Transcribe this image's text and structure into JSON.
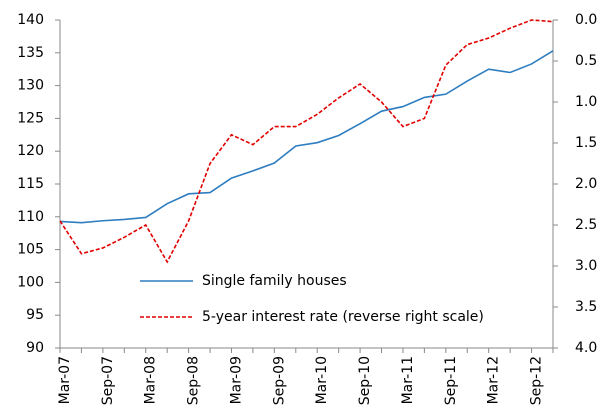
{
  "chart_data": {
    "type": "line",
    "categories": [
      "Mar-07",
      null,
      "Sep-07",
      null,
      "Mar-08",
      null,
      "Sep-08",
      null,
      "Mar-09",
      null,
      "Sep-09",
      null,
      "Mar-10",
      null,
      "Sep-10",
      null,
      "Mar-11",
      null,
      "Sep-11",
      null,
      "Mar-12",
      null,
      "Sep-12",
      null
    ],
    "series": [
      {
        "name": "Single family houses",
        "color": "#2e7dc0",
        "linestyle": "solid",
        "values": [
          109.3,
          109.1,
          109.4,
          109.6,
          109.9,
          112.0,
          113.5,
          113.7,
          115.9,
          117.0,
          118.2,
          120.8,
          121.3,
          122.4,
          124.2,
          126.1,
          126.8,
          128.2,
          128.7,
          130.7,
          132.5,
          132.0,
          133.3,
          135.3
        ]
      },
      {
        "name": "5-year interest rate (reverse right scale)",
        "color": "#e00000",
        "linestyle": "dashed",
        "axis": "y2",
        "values": [
          2.45,
          2.85,
          2.78,
          2.65,
          2.5,
          2.95,
          2.45,
          1.75,
          1.4,
          1.52,
          1.3,
          1.3,
          1.15,
          0.95,
          0.78,
          1.0,
          1.3,
          1.2,
          0.55,
          0.3,
          0.22,
          0.1,
          0.0,
          0.02
        ]
      }
    ],
    "ylim": [
      90,
      140
    ],
    "yticks": [
      90,
      95,
      100,
      105,
      110,
      115,
      120,
      125,
      130,
      135,
      140
    ],
    "y2lim": [
      4,
      0
    ],
    "y2ticks": [
      {
        "value": 0,
        "label": "0.0"
      },
      0.5,
      {
        "value": 1,
        "label": "1.0"
      },
      1.5,
      {
        "value": 2,
        "label": "2.0"
      },
      2.5,
      {
        "value": 3,
        "label": "3.0"
      },
      3.5,
      {
        "value": 4,
        "label": "4.0"
      }
    ],
    "grid": false
  }
}
